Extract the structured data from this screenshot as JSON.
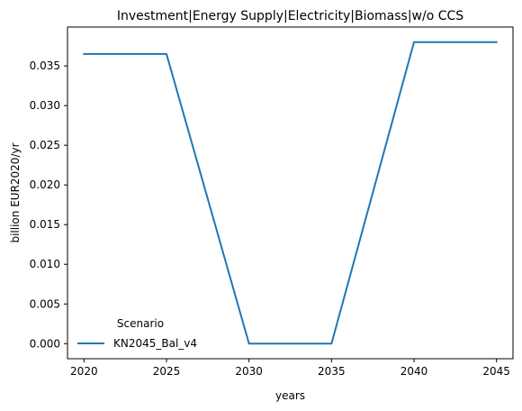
{
  "chart_data": {
    "type": "line",
    "title": "Investment|Energy Supply|Electricity|Biomass|w/o CCS",
    "xlabel": "years",
    "ylabel": "billion EUR2020/yr",
    "x": [
      2020,
      2025,
      2030,
      2035,
      2040,
      2045
    ],
    "series": [
      {
        "name": "KN2045_Bal_v4",
        "values": [
          0.0365,
          0.0365,
          0.0,
          0.0,
          0.038,
          0.038
        ],
        "color": "#1f77b4"
      }
    ],
    "xticks": [
      "2020",
      "2025",
      "2030",
      "2035",
      "2040",
      "2045"
    ],
    "yticks": [
      "0.000",
      "0.005",
      "0.010",
      "0.015",
      "0.020",
      "0.025",
      "0.030",
      "0.035"
    ],
    "xlim": [
      2019,
      2046
    ],
    "ylim": [
      -0.0019,
      0.0399
    ],
    "grid": false,
    "legend": {
      "title": "Scenario",
      "placement": "lower-left"
    }
  }
}
